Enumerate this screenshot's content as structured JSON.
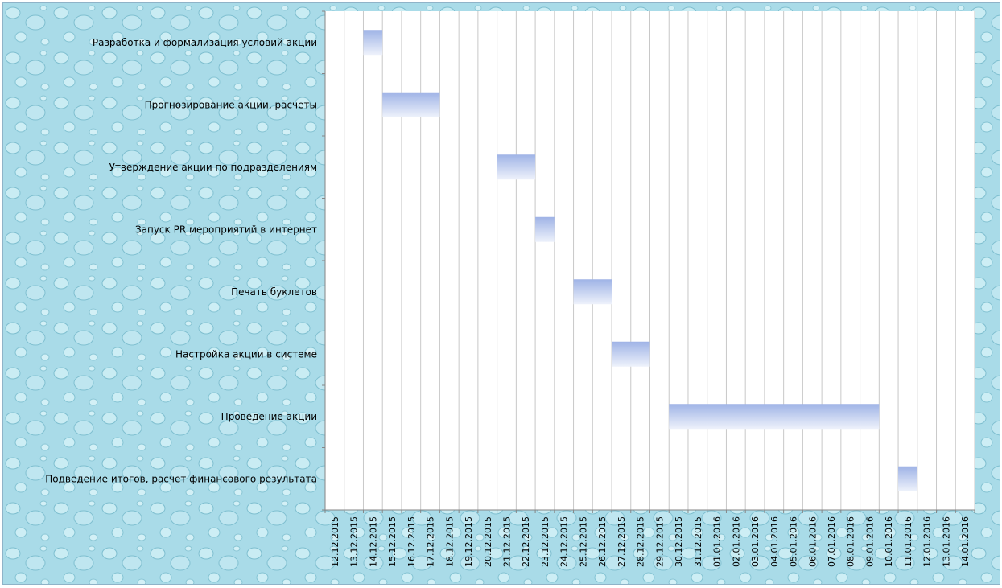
{
  "colors": {
    "background": "#a9dbe8",
    "plot_area": "#ffffff",
    "gridline": "#c8c8c8",
    "bar_top": "#9fb3e6",
    "bar_bottom": "#eef2fb",
    "text": "#000000"
  },
  "chart_data": {
    "type": "bar",
    "orientation": "horizontal-gantt",
    "title": "",
    "xlabel": "",
    "ylabel": "",
    "grid": true,
    "legend": "none",
    "x_ticks": [
      "12.12.2015",
      "13.12.2015",
      "14.12.2015",
      "15.12.2015",
      "16.12.2015",
      "17.12.2015",
      "18.12.2015",
      "19.12.2015",
      "20.12.2015",
      "21.12.2015",
      "22.12.2015",
      "23.12.2015",
      "24.12.2015",
      "25.12.2015",
      "26.12.2015",
      "27.12.2015",
      "28.12.2015",
      "29.12.2015",
      "30.12.2015",
      "31.12.2015",
      "01.01.2016",
      "02.01.2016",
      "03.01.2016",
      "04.01.2016",
      "05.01.2016",
      "06.01.2016",
      "07.01.2016",
      "08.01.2016",
      "09.01.2016",
      "10.01.2016",
      "11.01.2016",
      "12.01.2016",
      "13.01.2016",
      "14.01.2016"
    ],
    "xlim": [
      "12.12.2015",
      "14.01.2016"
    ],
    "tasks": [
      {
        "label": "Разработка и формализация условий акции",
        "start": "14.12.2015",
        "end": "15.12.2015"
      },
      {
        "label": "Прогнозирование акции, расчеты",
        "start": "15.12.2015",
        "end": "18.12.2015"
      },
      {
        "label": "Утверждение акции по подразделениям",
        "start": "21.12.2015",
        "end": "23.12.2015"
      },
      {
        "label": "Запуск PR мероприятий в интернет",
        "start": "23.12.2015",
        "end": "24.12.2015"
      },
      {
        "label": "Печать буклетов",
        "start": "25.12.2015",
        "end": "27.12.2015"
      },
      {
        "label": "Настройка акции в системе",
        "start": "27.12.2015",
        "end": "29.12.2015"
      },
      {
        "label": "Проведение акции",
        "start": "30.12.2015",
        "end": "10.01.2016"
      },
      {
        "label": "Подведение итогов, расчет финансового результата",
        "start": "11.01.2016",
        "end": "12.01.2016"
      }
    ]
  }
}
